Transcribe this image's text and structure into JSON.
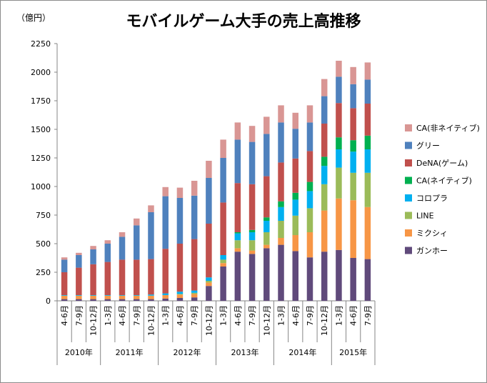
{
  "chart_data": {
    "type": "bar",
    "stacked": true,
    "title": "モバイルゲーム大手の売上高推移",
    "ylabel": "（億円）",
    "xlabel": "",
    "ylim": [
      0,
      2250
    ],
    "yticks": [
      0,
      250,
      500,
      750,
      1000,
      1250,
      1500,
      1750,
      2000,
      2250
    ],
    "grid": false,
    "legend_position": "right",
    "categories": [
      "4-6月",
      "7-9月",
      "10-12月",
      "1-3月",
      "4-6月",
      "7-9月",
      "10-12月",
      "1-3月",
      "4-6月",
      "7-9月",
      "10-12月",
      "1-3月",
      "4-6月",
      "7-9月",
      "10-12月",
      "1-3月",
      "4-6月",
      "7-9月",
      "10-12月",
      "1-3月",
      "4-6月",
      "7-9月"
    ],
    "year_groups": [
      {
        "label": "2010年",
        "count": 3
      },
      {
        "label": "2011年",
        "count": 4
      },
      {
        "label": "2012年",
        "count": 4
      },
      {
        "label": "2013年",
        "count": 4
      },
      {
        "label": "2014年",
        "count": 4
      },
      {
        "label": "2015年",
        "count": 3
      }
    ],
    "series": [
      {
        "name": "ガンホー",
        "color": "#604a7b",
        "values": [
          15,
          15,
          15,
          15,
          15,
          15,
          15,
          20,
          25,
          30,
          130,
          300,
          430,
          410,
          460,
          490,
          435,
          380,
          430,
          445,
          375,
          365
        ]
      },
      {
        "name": "ミクシィ",
        "color": "#f79646",
        "values": [
          30,
          30,
          30,
          30,
          30,
          30,
          30,
          30,
          30,
          30,
          30,
          30,
          30,
          30,
          30,
          60,
          140,
          220,
          360,
          450,
          505,
          455
        ]
      },
      {
        "name": "LINE",
        "color": "#9bbb59",
        "values": [
          0,
          0,
          0,
          0,
          0,
          0,
          0,
          0,
          5,
          10,
          15,
          30,
          70,
          90,
          110,
          150,
          170,
          210,
          230,
          270,
          240,
          300
        ]
      },
      {
        "name": "コロプラ",
        "color": "#00b0f0",
        "values": [
          5,
          5,
          5,
          5,
          5,
          5,
          10,
          15,
          20,
          20,
          30,
          40,
          60,
          70,
          100,
          120,
          140,
          150,
          160,
          160,
          185,
          205
        ]
      },
      {
        "name": "CA(ネイティブ)",
        "color": "#00b050",
        "values": [
          0,
          0,
          0,
          0,
          0,
          0,
          0,
          0,
          0,
          0,
          0,
          0,
          10,
          20,
          30,
          50,
          60,
          80,
          80,
          105,
          100,
          120
        ]
      },
      {
        "name": "DeNA(ゲーム)",
        "color": "#c0504d",
        "values": [
          200,
          240,
          270,
          290,
          310,
          310,
          310,
          390,
          420,
          450,
          470,
          460,
          430,
          400,
          360,
          340,
          300,
          270,
          290,
          300,
          280,
          280
        ]
      },
      {
        "name": "グリー",
        "color": "#4f81bd",
        "values": [
          110,
          110,
          130,
          160,
          200,
          300,
          410,
          460,
          400,
          380,
          400,
          390,
          380,
          370,
          370,
          350,
          260,
          250,
          240,
          230,
          210,
          210
        ]
      },
      {
        "name": "CA(非ネイティブ)",
        "color": "#d99694",
        "values": [
          20,
          20,
          30,
          30,
          40,
          60,
          60,
          80,
          90,
          130,
          150,
          160,
          150,
          140,
          150,
          150,
          140,
          150,
          150,
          140,
          150,
          150
        ]
      }
    ]
  }
}
